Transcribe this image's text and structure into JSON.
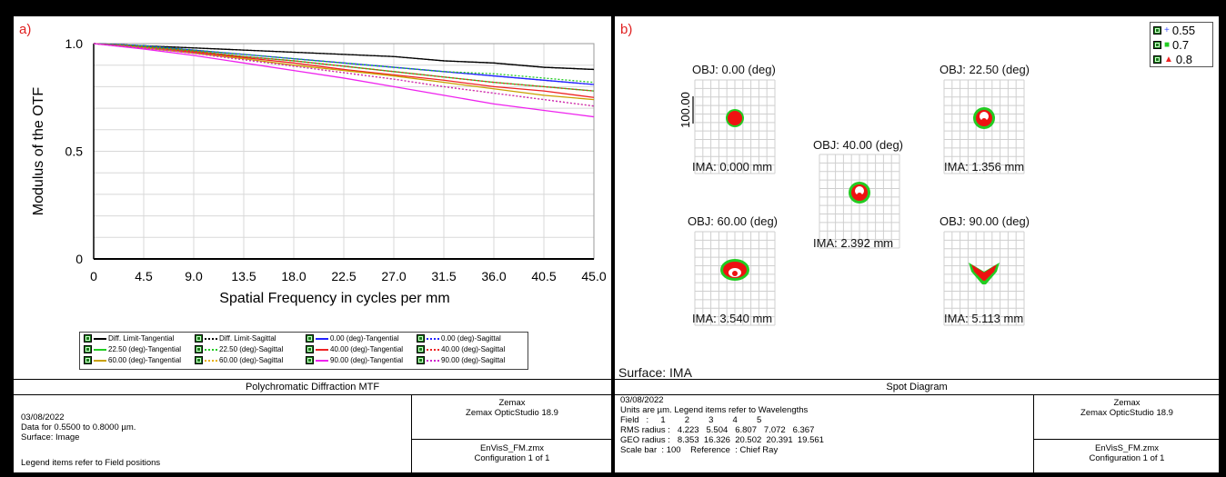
{
  "panel_a": {
    "label": "a)",
    "header_title": "Polychromatic Diffraction MTF",
    "info": {
      "date": "03/08/2022",
      "data_line": "Data for 0.5500 to 0.8000 µm.",
      "surface_line": "Surface: Image",
      "note": "Legend items refer to Field positions"
    },
    "software": {
      "vendor": "Zemax",
      "product": "Zemax OpticStudio 18.9"
    },
    "file": {
      "name": "EnVisS_FM.zmx",
      "config": "Configuration 1 of 1"
    },
    "legend": [
      {
        "label": "Diff. Limit-Tangential",
        "color": "#000000",
        "dotted": false
      },
      {
        "label": "Diff. Limit-Sagittal",
        "color": "#000000",
        "dotted": true
      },
      {
        "label": "0.00 (deg)-Tangential",
        "color": "#2222ff",
        "dotted": false
      },
      {
        "label": "0.00 (deg)-Sagittal",
        "color": "#2222ff",
        "dotted": true
      },
      {
        "label": "22.50 (deg)-Tangential",
        "color": "#22cc22",
        "dotted": false
      },
      {
        "label": "22.50 (deg)-Sagittal",
        "color": "#22cc22",
        "dotted": true
      },
      {
        "label": "40.00 (deg)-Tangential",
        "color": "#ee2222",
        "dotted": false
      },
      {
        "label": "40.00 (deg)-Sagittal",
        "color": "#ee2222",
        "dotted": true
      },
      {
        "label": "60.00 (deg)-Tangential",
        "color": "#c8a000",
        "dotted": false
      },
      {
        "label": "60.00 (deg)-Sagittal",
        "color": "#e8b000",
        "dotted": true
      },
      {
        "label": "90.00 (deg)-Tangential",
        "color": "#ee22ee",
        "dotted": false
      },
      {
        "label": "90.00 (deg)-Sagittal",
        "color": "#cc22cc",
        "dotted": true
      }
    ]
  },
  "panel_b": {
    "label": "b)",
    "surface_label": "Surface: IMA",
    "header_title": "Spot Diagram",
    "info": {
      "date": "03/08/2022",
      "units_line": "Units are µm. Legend items refer to Wavelengths",
      "field_line": "Field   :     1        2        3        4        5",
      "rms_line": "RMS radius :   4.223   5.504   6.807   7.072   6.367",
      "geo_line": "GEO radius :   8.353  16.326  20.502  20.391  19.561",
      "scale_line": "Scale bar  : 100    Reference  : Chief Ray"
    },
    "software": {
      "vendor": "Zemax",
      "product": "Zemax OpticStudio 18.9"
    },
    "file": {
      "name": "EnVisS_FM.zmx",
      "config": "Configuration 1 of 1"
    },
    "wavelengths": [
      {
        "label": "0.55",
        "marker": "+",
        "color": "#4455ff"
      },
      {
        "label": "0.7",
        "marker": "■",
        "color": "#22cc22"
      },
      {
        "label": "0.8",
        "marker": "▲",
        "color": "#ee2222"
      }
    ],
    "scale_bar_label": "100.00",
    "spots": [
      {
        "obj": "OBJ: 0.00 (deg)",
        "ima": "IMA: 0.000 mm",
        "shape": "disc"
      },
      {
        "obj": "OBJ: 22.50 (deg)",
        "ima": "IMA: 1.356 mm",
        "shape": "ring"
      },
      {
        "obj": "OBJ: 40.00 (deg)",
        "ima": "IMA: 2.392 mm",
        "shape": "ring"
      },
      {
        "obj": "OBJ: 60.00 (deg)",
        "ima": "IMA: 3.540 mm",
        "shape": "crescent"
      },
      {
        "obj": "OBJ: 90.00 (deg)",
        "ima": "IMA: 5.113 mm",
        "shape": "chevron"
      }
    ]
  },
  "chart_data": [
    {
      "type": "line",
      "title": "Polychromatic Diffraction MTF",
      "xlabel": "Spatial Frequency in cycles per mm",
      "ylabel": "Modulus of the OTF",
      "xlim": [
        0,
        45
      ],
      "ylim": [
        0,
        1
      ],
      "xticks": [
        "0",
        "4.5",
        "9.0",
        "13.5",
        "18.0",
        "22.5",
        "27.0",
        "31.5",
        "36.0",
        "40.5",
        "45.0"
      ],
      "yticks": [
        "0",
        "0.5",
        "1.0"
      ],
      "grid": true,
      "legend_position": "bottom",
      "x": [
        0,
        4.5,
        9,
        13.5,
        18,
        22.5,
        27,
        31.5,
        36,
        40.5,
        45
      ],
      "series": [
        {
          "name": "Diff. Limit-Tangential",
          "values": [
            1.0,
            0.99,
            0.98,
            0.97,
            0.96,
            0.95,
            0.94,
            0.92,
            0.91,
            0.89,
            0.88
          ]
        },
        {
          "name": "Diff. Limit-Sagittal",
          "values": [
            1.0,
            0.99,
            0.98,
            0.97,
            0.96,
            0.95,
            0.94,
            0.92,
            0.91,
            0.89,
            0.88
          ]
        },
        {
          "name": "0.00 (deg)-Tangential",
          "values": [
            1.0,
            0.99,
            0.97,
            0.95,
            0.93,
            0.91,
            0.89,
            0.87,
            0.85,
            0.83,
            0.81
          ]
        },
        {
          "name": "0.00 (deg)-Sagittal",
          "values": [
            1.0,
            0.99,
            0.97,
            0.95,
            0.93,
            0.91,
            0.89,
            0.87,
            0.85,
            0.83,
            0.81
          ]
        },
        {
          "name": "22.50 (deg)-Tangential",
          "values": [
            1.0,
            0.985,
            0.965,
            0.94,
            0.92,
            0.895,
            0.87,
            0.845,
            0.82,
            0.8,
            0.78
          ]
        },
        {
          "name": "22.50 (deg)-Sagittal",
          "values": [
            1.0,
            0.99,
            0.97,
            0.95,
            0.93,
            0.91,
            0.89,
            0.87,
            0.86,
            0.84,
            0.82
          ]
        },
        {
          "name": "40.00 (deg)-Tangential",
          "values": [
            1.0,
            0.98,
            0.96,
            0.935,
            0.91,
            0.88,
            0.855,
            0.83,
            0.8,
            0.78,
            0.75
          ]
        },
        {
          "name": "40.00 (deg)-Sagittal",
          "values": [
            1.0,
            0.985,
            0.965,
            0.94,
            0.92,
            0.895,
            0.87,
            0.845,
            0.82,
            0.8,
            0.78
          ]
        },
        {
          "name": "60.00 (deg)-Tangential",
          "values": [
            1.0,
            0.98,
            0.955,
            0.93,
            0.9,
            0.875,
            0.85,
            0.82,
            0.79,
            0.76,
            0.74
          ]
        },
        {
          "name": "60.00 (deg)-Sagittal",
          "values": [
            1.0,
            0.98,
            0.955,
            0.925,
            0.895,
            0.865,
            0.835,
            0.8,
            0.77,
            0.74,
            0.71
          ]
        },
        {
          "name": "90.00 (deg)-Tangential",
          "values": [
            1.0,
            0.975,
            0.945,
            0.91,
            0.875,
            0.84,
            0.8,
            0.76,
            0.72,
            0.69,
            0.66
          ]
        },
        {
          "name": "90.00 (deg)-Sagittal",
          "values": [
            1.0,
            0.98,
            0.955,
            0.925,
            0.895,
            0.865,
            0.835,
            0.8,
            0.77,
            0.74,
            0.71
          ]
        }
      ]
    },
    {
      "type": "scatter",
      "title": "Spot Diagram",
      "fields": [
        "0.00 (deg)",
        "22.50 (deg)",
        "40.00 (deg)",
        "60.00 (deg)",
        "90.00 (deg)"
      ],
      "image_heights_mm": [
        0.0,
        1.356,
        2.392,
        3.54,
        5.113
      ],
      "rms_radius_um": [
        4.223,
        5.504,
        6.807,
        7.072,
        6.367
      ],
      "geo_radius_um": [
        8.353,
        16.326,
        20.502,
        20.391,
        19.561
      ],
      "scale_bar_um": 100,
      "reference": "Chief Ray",
      "legend_position": "top-right"
    }
  ]
}
